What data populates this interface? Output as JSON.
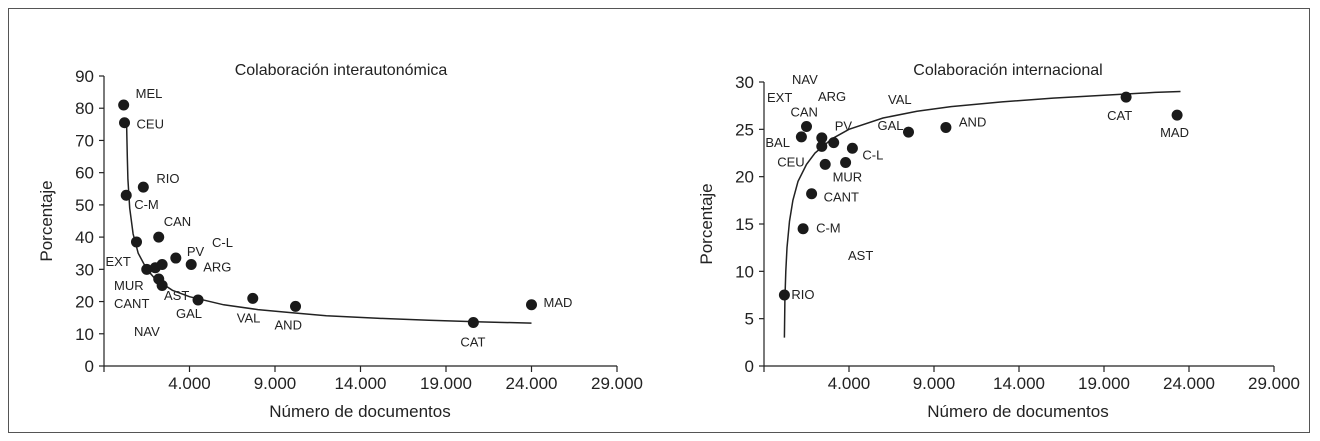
{
  "chart_data": [
    {
      "type": "scatter",
      "title": "Colaboración interautonómica",
      "xlabel": "Número de documentos",
      "ylabel": "Porcentaje",
      "xlim": [
        -1000,
        29000
      ],
      "ylim": [
        0,
        90
      ],
      "xticks": [
        4000,
        9000,
        14000,
        19000,
        24000,
        29000
      ],
      "xtick_labels": [
        "4.000",
        "9.000",
        "14.000",
        "19.000",
        "24.000",
        "29.000"
      ],
      "yticks": [
        0,
        10,
        20,
        30,
        40,
        50,
        60,
        70,
        80,
        90
      ],
      "ytick_labels": [
        "0",
        "10",
        "20",
        "30",
        "40",
        "50",
        "60",
        "70",
        "80",
        "90"
      ],
      "grid": false,
      "trendline": {
        "x": [
          320,
          360,
          400,
          500,
          700,
          1000,
          1500,
          2000,
          3000,
          4000,
          6000,
          8000,
          10000,
          12000,
          15000,
          18000,
          21000,
          24000
        ],
        "y": [
          75,
          65,
          58,
          49,
          41,
          35,
          30,
          27,
          23.5,
          21.5,
          19,
          17.5,
          16.5,
          15.6,
          14.8,
          14.2,
          13.7,
          13.3
        ]
      },
      "points": [
        {
          "x": 150,
          "y": 81,
          "label": "MEL"
        },
        {
          "x": 200,
          "y": 75.5,
          "label": "CEU"
        },
        {
          "x": 1300,
          "y": 55.5,
          "label": "RIO"
        },
        {
          "x": 300,
          "y": 53,
          "label": "C-M"
        },
        {
          "x": 2200,
          "y": 40,
          "label": "CAN"
        },
        {
          "x": 900,
          "y": 38.5,
          "label": "EXT"
        },
        {
          "x": 3200,
          "y": 33.5,
          "label": "PV"
        },
        {
          "x": 4100,
          "y": 31.5,
          "label": "ARG"
        },
        {
          "x": 1500,
          "y": 30,
          "label": ""
        },
        {
          "x": 2000,
          "y": 30.5,
          "label": ""
        },
        {
          "x": 2400,
          "y": 31.5,
          "label": ""
        },
        {
          "x": 2200,
          "y": 27,
          "label": ""
        },
        {
          "x": 2400,
          "y": 25,
          "label": ""
        },
        {
          "x": 4500,
          "y": 20.5,
          "label": ""
        },
        {
          "x": 7700,
          "y": 21,
          "label": "VAL"
        },
        {
          "x": 10200,
          "y": 18.5,
          "label": "AND"
        },
        {
          "x": 20600,
          "y": 13.5,
          "label": "CAT"
        },
        {
          "x": 24000,
          "y": 19,
          "label": "MAD"
        }
      ],
      "free_labels": [
        "C-L",
        "MUR",
        "CANT",
        "AST",
        "GAL",
        "NAV"
      ]
    },
    {
      "type": "scatter",
      "title": "Colaboración internacional",
      "xlabel": "Número de documentos",
      "ylabel": "Porcentaje",
      "xlim": [
        -1000,
        29000
      ],
      "ylim": [
        0,
        30
      ],
      "xticks": [
        4000,
        9000,
        14000,
        19000,
        24000,
        29000
      ],
      "xtick_labels": [
        "4.000",
        "9.000",
        "14.000",
        "19.000",
        "24.000",
        "29.000"
      ],
      "yticks": [
        0,
        5,
        10,
        15,
        20,
        25,
        30
      ],
      "ytick_labels": [
        "0",
        "5",
        "10",
        "15",
        "20",
        "25",
        "30"
      ],
      "grid": false,
      "trendline": {
        "x": [
          200,
          230,
          280,
          350,
          500,
          700,
          1000,
          1500,
          2000,
          3000,
          4000,
          6000,
          8000,
          10000,
          13000,
          16000,
          19000,
          22000,
          23500
        ],
        "y": [
          3,
          7,
          10,
          12.5,
          15.3,
          17.5,
          19.5,
          21.3,
          22.5,
          24,
          25,
          26.2,
          26.9,
          27.4,
          27.9,
          28.3,
          28.6,
          28.9,
          29
        ]
      },
      "points": [
        {
          "x": 200,
          "y": 7.5,
          "label": "RIO"
        },
        {
          "x": 1300,
          "y": 14.5,
          "label": "C-M"
        },
        {
          "x": 1800,
          "y": 18.2,
          "label": "CANT"
        },
        {
          "x": 2600,
          "y": 21.3,
          "label": "CEU"
        },
        {
          "x": 3800,
          "y": 21.5,
          "label": "MUR"
        },
        {
          "x": 4200,
          "y": 23,
          "label": "C-L"
        },
        {
          "x": 2400,
          "y": 23.2,
          "label": ""
        },
        {
          "x": 2400,
          "y": 24.1,
          "label": ""
        },
        {
          "x": 3100,
          "y": 23.6,
          "label": "PV"
        },
        {
          "x": 1200,
          "y": 24.2,
          "label": "BAL"
        },
        {
          "x": 1500,
          "y": 25.3,
          "label": "CAN"
        },
        {
          "x": 7500,
          "y": 24.7,
          "label": "GAL"
        },
        {
          "x": 9700,
          "y": 25.2,
          "label": "AND"
        },
        {
          "x": 20300,
          "y": 28.4,
          "label": "CAT"
        },
        {
          "x": 23300,
          "y": 26.5,
          "label": "MAD"
        }
      ],
      "free_labels": [
        "EXT",
        "NAV",
        "ARG",
        "VAL",
        "AST"
      ]
    }
  ]
}
